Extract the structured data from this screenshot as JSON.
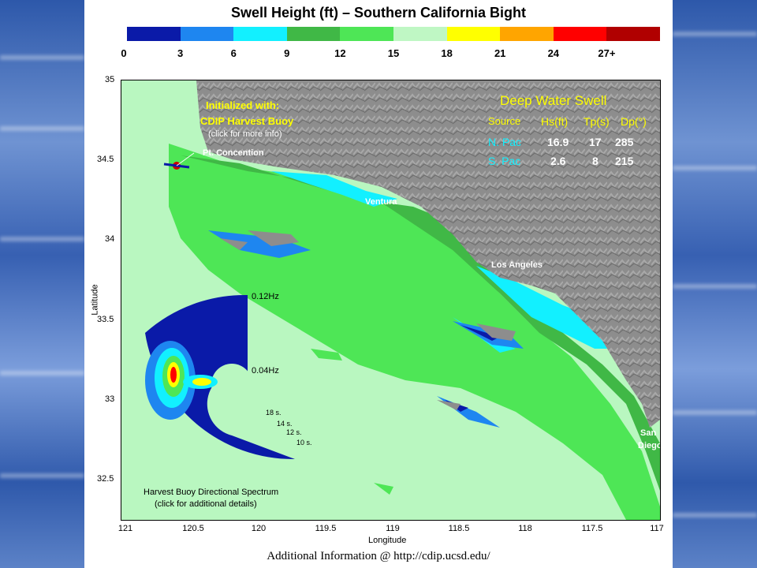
{
  "title": "Swell Height (ft) – Southern California Bight",
  "colorbar": {
    "colors": [
      "#0a1aa8",
      "#1e86f0",
      "#12f0ff",
      "#40b846",
      "#4ee656",
      "#bff7c4",
      "#ffff00",
      "#ffa500",
      "#ff0000",
      "#b00000"
    ],
    "ticks": [
      "0",
      "3",
      "6",
      "9",
      "12",
      "15",
      "18",
      "21",
      "24",
      "27+"
    ]
  },
  "axes": {
    "ylabel": "Latitude",
    "xlabel": "Longitude",
    "yticks": [
      "35",
      "34.5",
      "34",
      "33.5",
      "33",
      "32.5"
    ],
    "xticks": [
      "121",
      "120.5",
      "120",
      "119.5",
      "119",
      "118.5",
      "118",
      "117.5",
      "117"
    ]
  },
  "init": {
    "heading": "Initialized with:",
    "buoy": "CDIP Harvest Buoy",
    "hint": "(click for more info)"
  },
  "places": {
    "conception": "Pt. Concention",
    "ventura": "Ventura",
    "la": "Los Angeles",
    "sd1": "San",
    "sd2": "Diego"
  },
  "swell_table": {
    "title": "Deep Water Swell",
    "headers": [
      "Source",
      "Hs(ft)",
      "Tp(s)",
      "Dp(°)"
    ],
    "rows": [
      {
        "source": "N. Pac",
        "hs": "16.9",
        "tp": "17",
        "dp": "285"
      },
      {
        "source": "S. Pac",
        "hs": "2.6",
        "tp": "8",
        "dp": "215"
      }
    ]
  },
  "spectrum": {
    "freq_outer": "0.12Hz",
    "freq_inner": "0.04Hz",
    "periods": [
      "18 s.",
      "14 s.",
      "12 s.",
      "10 s."
    ],
    "caption1": "Harvest Buoy Directional Spectrum",
    "caption2": "(click for additional details)"
  },
  "footer": "Additional Information @ http://cdip.ucsd.edu/"
}
